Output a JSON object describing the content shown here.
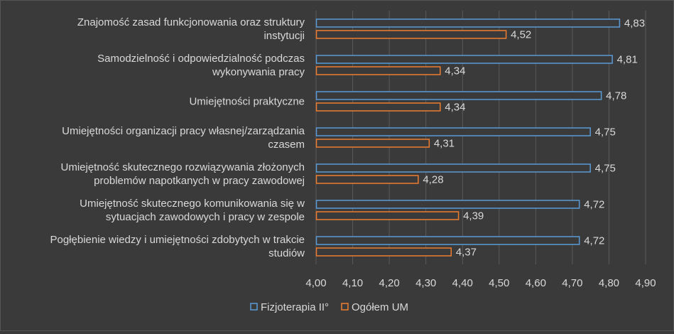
{
  "chart_data": {
    "type": "bar",
    "orientation": "horizontal",
    "categories": [
      [
        "Znajomość zasad funkcjonowania oraz struktury",
        "instytucji"
      ],
      [
        "Samodzielność i odpowiedzialność podczas",
        "wykonywania pracy"
      ],
      [
        "Umiejętności praktyczne"
      ],
      [
        "Umiejętności organizacji pracy własnej/zarządzania",
        "czasem"
      ],
      [
        "Umiejętność skutecznego rozwiązywania złożonych",
        "problemów napotkanych w pracy zawodowej"
      ],
      [
        "Umiejętność skutecznego komunikowania się w",
        "sytuacjach zawodowych i pracy w zespole"
      ],
      [
        "Pogłębienie wiedzy i umiejętności zdobytych w trakcie",
        "studiów"
      ]
    ],
    "series": [
      {
        "name": "Fizjoterapia II°",
        "values": [
          4.83,
          4.81,
          4.78,
          4.75,
          4.75,
          4.72,
          4.72
        ],
        "labels": [
          "4,83",
          "4,81",
          "4,78",
          "4,75",
          "4,75",
          "4,72",
          "4,72"
        ],
        "stroke": "#5b9bd5",
        "fill": "#3a3a3a"
      },
      {
        "name": "Ogółem UM",
        "values": [
          4.52,
          4.34,
          4.34,
          4.31,
          4.28,
          4.39,
          4.37
        ],
        "labels": [
          "4,52",
          "4,34",
          "4,34",
          "4,31",
          "4,28",
          "4,39",
          "4,37"
        ],
        "stroke": "#ed7d31",
        "fill": "#3a3a3a"
      }
    ],
    "xlim": [
      4.0,
      4.9
    ],
    "xticks": [
      4.0,
      4.1,
      4.2,
      4.3,
      4.4,
      4.5,
      4.6,
      4.7,
      4.8,
      4.9
    ],
    "xtick_labels": [
      "4,00",
      "4,10",
      "4,20",
      "4,30",
      "4,40",
      "4,50",
      "4,60",
      "4,70",
      "4,80",
      "4,90"
    ],
    "grid": true,
    "legend_position": "bottom"
  }
}
